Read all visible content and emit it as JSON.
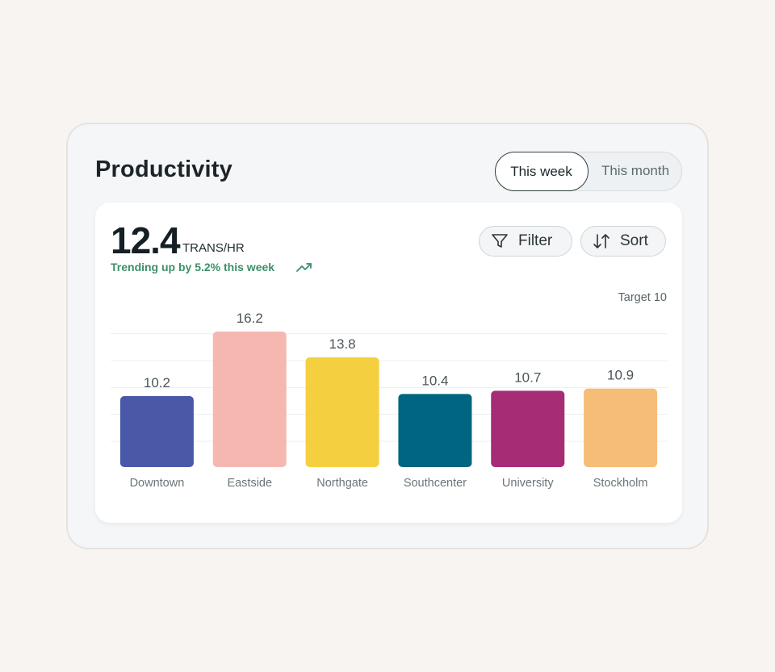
{
  "card": {
    "title": "Productivity",
    "tabs": [
      {
        "label": "This week",
        "active": true
      },
      {
        "label": "This month",
        "active": false
      }
    ]
  },
  "metric": {
    "value": "12.4",
    "unit": "TRANS/HR",
    "trend": "Trending up by 5.2% this week",
    "trend_icon": "trending-up-icon",
    "trend_color": "#3d8f69"
  },
  "controls": {
    "filter_label": "Filter",
    "filter_icon": "filter-icon",
    "sort_label": "Sort",
    "sort_icon": "sort-icon"
  },
  "chart_data": {
    "type": "bar",
    "categories": [
      "Downtown",
      "Eastside",
      "Northgate",
      "Southcenter",
      "University",
      "Stockholm"
    ],
    "values": [
      10.2,
      16.2,
      13.8,
      10.4,
      10.7,
      10.9
    ],
    "value_labels": [
      "10.2",
      "16.2",
      "13.8",
      "10.4",
      "10.7",
      "10.9"
    ],
    "colors": [
      "#4a58a8",
      "#f5b8b1",
      "#f4cf3f",
      "#006580",
      "#a52c75",
      "#f5bd78"
    ],
    "target_label": "Target 10",
    "ylim": [
      3.6,
      16.2
    ],
    "grid": true,
    "gridlines": [
      6,
      8.5,
      11,
      13.5,
      16
    ],
    "legend": "none"
  }
}
